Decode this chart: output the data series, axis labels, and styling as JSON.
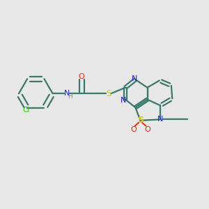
{
  "bg_color": "#e8e8e8",
  "bond_color": "#3a7a6a",
  "bond_width": 1.6,
  "atom_colors": {
    "N": "#1a1aff",
    "O": "#ff2200",
    "S": "#cccc00",
    "Cl": "#22cc00",
    "NH_gray": "#888888"
  },
  "figsize": [
    3.0,
    3.0
  ],
  "dpi": 100
}
